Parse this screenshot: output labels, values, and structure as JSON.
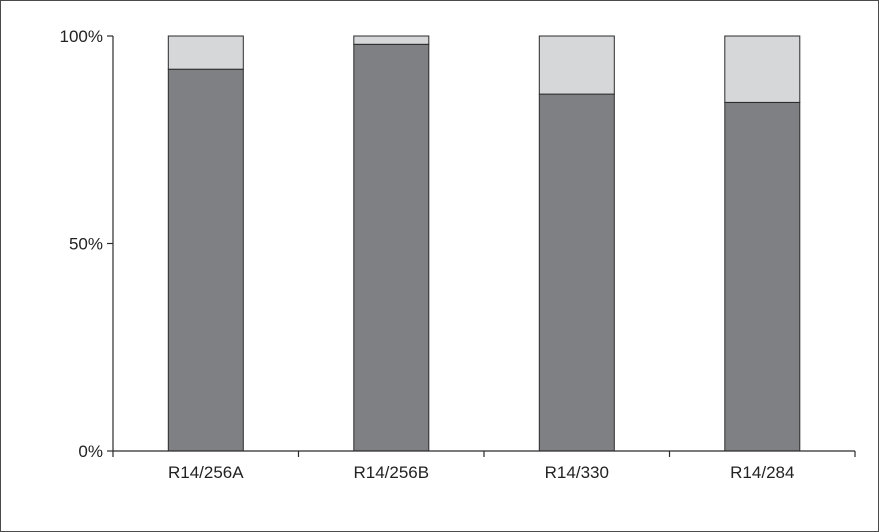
{
  "chart_data": {
    "type": "bar",
    "stacked": true,
    "percent_stacked": true,
    "categories": [
      "R14/256A",
      "R14/256B",
      "R14/330",
      "R14/284"
    ],
    "series": [
      {
        "values": [
          92,
          98,
          86,
          84
        ],
        "color": "#7f8083"
      },
      {
        "values": [
          8,
          2,
          14,
          16
        ],
        "color": "#d6d7d9"
      }
    ],
    "y_ticks": [
      "0%",
      "50%",
      "100%"
    ],
    "ylim": [
      0,
      100
    ],
    "grid": false,
    "legend": "none"
  }
}
